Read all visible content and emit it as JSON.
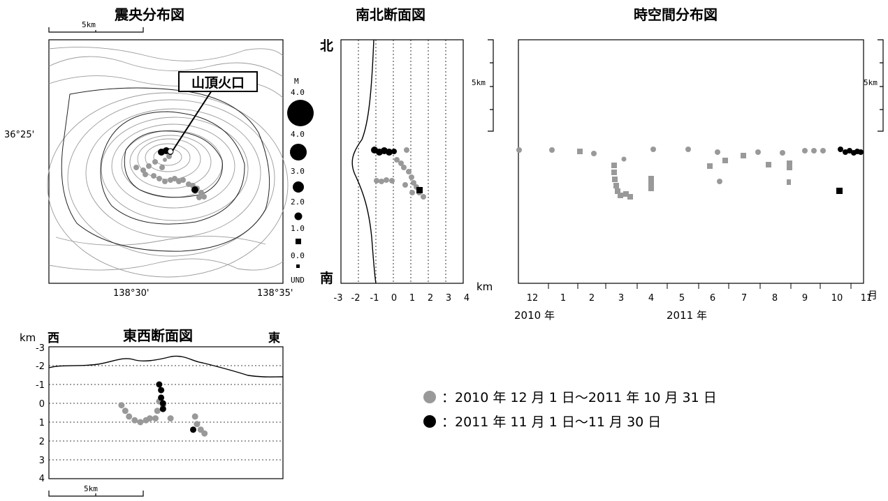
{
  "titles": {
    "epicenter": "震央分布図",
    "ns": "南北断面図",
    "st": "時空間分布図",
    "ew": "東西断面図"
  },
  "map": {
    "scale_label": "5km",
    "lat_label": "36°25'",
    "lon_labels": [
      "138°30'",
      "138°35'"
    ],
    "crater_label": "山頂火口",
    "mag_header": "M",
    "mag_labels": [
      "4.0",
      "4.0",
      "3.0",
      "2.0",
      "1.0",
      "0.0",
      "UND"
    ]
  },
  "ns_section": {
    "north": "北",
    "south": "南",
    "scale_label": "5km",
    "unit": "km",
    "x_ticks": [
      "-3",
      "-2",
      "-1",
      "0",
      "1",
      "2",
      "3",
      "4"
    ]
  },
  "st_section": {
    "scale_label": "5km",
    "month_labels": [
      "12",
      "1",
      "2",
      "3",
      "4",
      "5",
      "6",
      "7",
      "8",
      "9",
      "10",
      "11"
    ],
    "month_unit": "月",
    "year_labels": [
      "2010 年",
      "2011 年"
    ]
  },
  "ew_section": {
    "unit": "km",
    "west": "西",
    "east": "東",
    "y_ticks": [
      "-3",
      "-2",
      "-1",
      "0",
      "1",
      "2",
      "3",
      "4"
    ],
    "scale_label": "5km"
  },
  "legend": {
    "gray_text": "：2010 年 12 月 1 日～2011 年 10 月 31 日",
    "black_text": "：2011 年 11 月 1 日～11 月 30 日",
    "gray_color": "#999999",
    "black_color": "#000000"
  },
  "chart_data": [
    {
      "type": "scatter",
      "title": "東西断面図",
      "xlabel": "",
      "ylabel": "km",
      "ylim": [
        4,
        -3
      ],
      "y_ticks": [
        -3,
        -2,
        -1,
        0,
        1,
        2,
        3,
        4
      ],
      "series": [
        {
          "color": "#999999",
          "points_km": [
            [
              -2.3,
              0.1
            ],
            [
              -2.1,
              0.4
            ],
            [
              -1.9,
              0.7
            ],
            [
              -1.6,
              0.9
            ],
            [
              -1.3,
              1.0
            ],
            [
              -1.0,
              0.9
            ],
            [
              -0.8,
              0.8
            ],
            [
              -0.5,
              0.8
            ],
            [
              -0.4,
              0.4
            ],
            [
              -0.3,
              -0.1
            ],
            [
              -0.1,
              0.1
            ],
            [
              0.3,
              0.8
            ],
            [
              1.6,
              0.7
            ],
            [
              1.7,
              1.1
            ],
            [
              1.9,
              1.4
            ],
            [
              2.1,
              1.6
            ]
          ]
        },
        {
          "color": "#000000",
          "points_km": [
            [
              -0.3,
              -1.0
            ],
            [
              -0.2,
              -0.7
            ],
            [
              -0.2,
              -0.3
            ],
            [
              -0.1,
              0.0
            ],
            [
              -0.1,
              0.3
            ],
            [
              1.5,
              1.4
            ]
          ]
        }
      ]
    },
    {
      "type": "scatter",
      "title": "南北断面図",
      "xlabel": "km",
      "x_ticks": [
        -3,
        -2,
        -1,
        0,
        1,
        2,
        3,
        4
      ],
      "series": [
        {
          "color": "#999999",
          "points_x": [
            -0.8,
            -0.6,
            -0.3,
            0.2,
            0.5,
            0.8,
            1.0,
            1.2,
            1.3,
            1.5,
            1.8,
            1.6
          ]
        },
        {
          "color": "#000000",
          "points_x": [
            -0.9,
            -0.5,
            -0.1,
            0.3,
            0.6,
            1.3
          ]
        }
      ]
    }
  ]
}
